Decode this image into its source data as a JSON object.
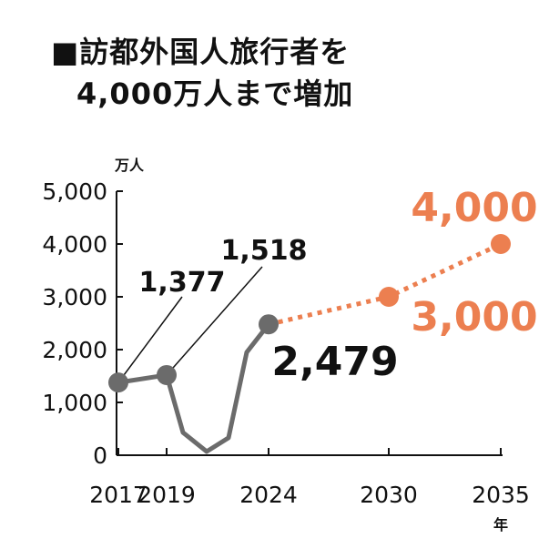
{
  "title": {
    "line1": "■訪都外国人旅行者を",
    "line2": "4,000万人まで増加"
  },
  "colors": {
    "actual": "#6b6b6b",
    "forecast": "#ec7f50",
    "axis": "#111111",
    "text": "#111111"
  },
  "chart_data": {
    "type": "line",
    "title": "■訪都外国人旅行者を 4,000万人まで増加",
    "ylabel_unit": "万人",
    "xlabel_unit": "年",
    "ylim": [
      0,
      5000
    ],
    "yticks": [
      0,
      1000,
      2000,
      3000,
      4000,
      5000
    ],
    "ytick_labels": [
      "0",
      "1,000",
      "2,000",
      "3,000",
      "4,000",
      "5,000"
    ],
    "xticks": [
      {
        "year": 2017,
        "label": "2017"
      },
      {
        "year": 2019,
        "label": "2019"
      },
      {
        "year": 2024,
        "label": "2024"
      },
      {
        "year": 2030,
        "label": "2030"
      },
      {
        "year": 2035,
        "label": "2035"
      }
    ],
    "grid": false,
    "series": [
      {
        "kind": "actual",
        "points": [
          {
            "x": 2017,
            "y": 1377,
            "marker": true,
            "label": "1,377"
          },
          {
            "x": 2019,
            "y": 1518,
            "marker": true,
            "label": "1,518"
          },
          {
            "x": 2020,
            "y": 430,
            "marker": false
          },
          {
            "x": 2021,
            "y": 70,
            "marker": false
          },
          {
            "x": 2022,
            "y": 330,
            "marker": false
          },
          {
            "x": 2023,
            "y": 1950,
            "marker": false
          },
          {
            "x": 2024,
            "y": 2479,
            "marker": true,
            "label": "2,479"
          }
        ]
      },
      {
        "kind": "forecast",
        "points": [
          {
            "x": 2024,
            "y": 2479,
            "marker": false
          },
          {
            "x": 2030,
            "y": 3000,
            "marker": true,
            "label": "3,000"
          },
          {
            "x": 2035,
            "y": 4000,
            "marker": true,
            "label": "4,000"
          }
        ]
      }
    ]
  }
}
